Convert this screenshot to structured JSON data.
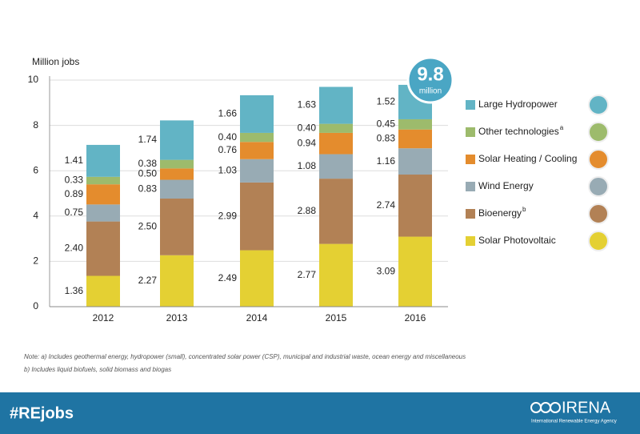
{
  "chart_data": {
    "type": "stacked_bar",
    "y_label": "Million jobs",
    "categories": [
      "2012",
      "2013",
      "2014",
      "2015",
      "2016"
    ],
    "series": [
      {
        "name": "Solar Photovoltaic",
        "color": "#e4d033",
        "values": [
          1.36,
          2.27,
          2.49,
          2.77,
          3.09
        ],
        "value_labels": [
          "1.36",
          "2.27",
          "2.49",
          "2.77",
          "3.09"
        ]
      },
      {
        "name": "Bioenergy",
        "note": "b",
        "color": "#b28155",
        "values": [
          2.4,
          2.5,
          2.99,
          2.88,
          2.74
        ],
        "value_labels": [
          "2.40",
          "2.50",
          "2.99",
          "2.88",
          "2.74"
        ]
      },
      {
        "name": "Wind Energy",
        "color": "#98abb4",
        "values": [
          0.75,
          0.83,
          1.03,
          1.08,
          1.16
        ],
        "value_labels": [
          "0.75",
          "0.83",
          "1.03",
          "1.08",
          "1.16"
        ]
      },
      {
        "name": "Solar Heating / Cooling",
        "color": "#e48c2d",
        "values": [
          0.89,
          0.5,
          0.76,
          0.94,
          0.83
        ],
        "value_labels": [
          "0.89",
          "0.50",
          "0.76",
          "0.94",
          "0.83"
        ]
      },
      {
        "name": "Other technologies",
        "note": "a",
        "color": "#9dbb6c",
        "values": [
          0.33,
          0.38,
          0.4,
          0.4,
          0.45
        ],
        "value_labels": [
          "0.33",
          "0.38",
          "0.40",
          "0.40",
          "0.45"
        ]
      },
      {
        "name": "Large Hydropower",
        "color": "#62b4c5",
        "values": [
          1.41,
          1.74,
          1.66,
          1.63,
          1.52
        ],
        "value_labels": [
          "1.41",
          "1.74",
          "1.66",
          "1.63",
          "1.52"
        ]
      }
    ],
    "ylim": [
      0,
      10
    ],
    "yticks": [
      0,
      2,
      4,
      6,
      8,
      10
    ],
    "grid": true,
    "badge_value": 9.8,
    "badge_unit": "million",
    "notes": [
      "Note: a) Includes geothermal energy, hydropower (small), concentrated solar power (CSP), municipal and industrial waste, ocean energy and miscellaneous",
      "b) Includes liquid biofuels, solid biomass and biogas"
    ]
  },
  "footer": {
    "hashtag": "#REjobs",
    "logo": "IRENA",
    "logo_subtitle": "International Renewable Energy Agency"
  }
}
